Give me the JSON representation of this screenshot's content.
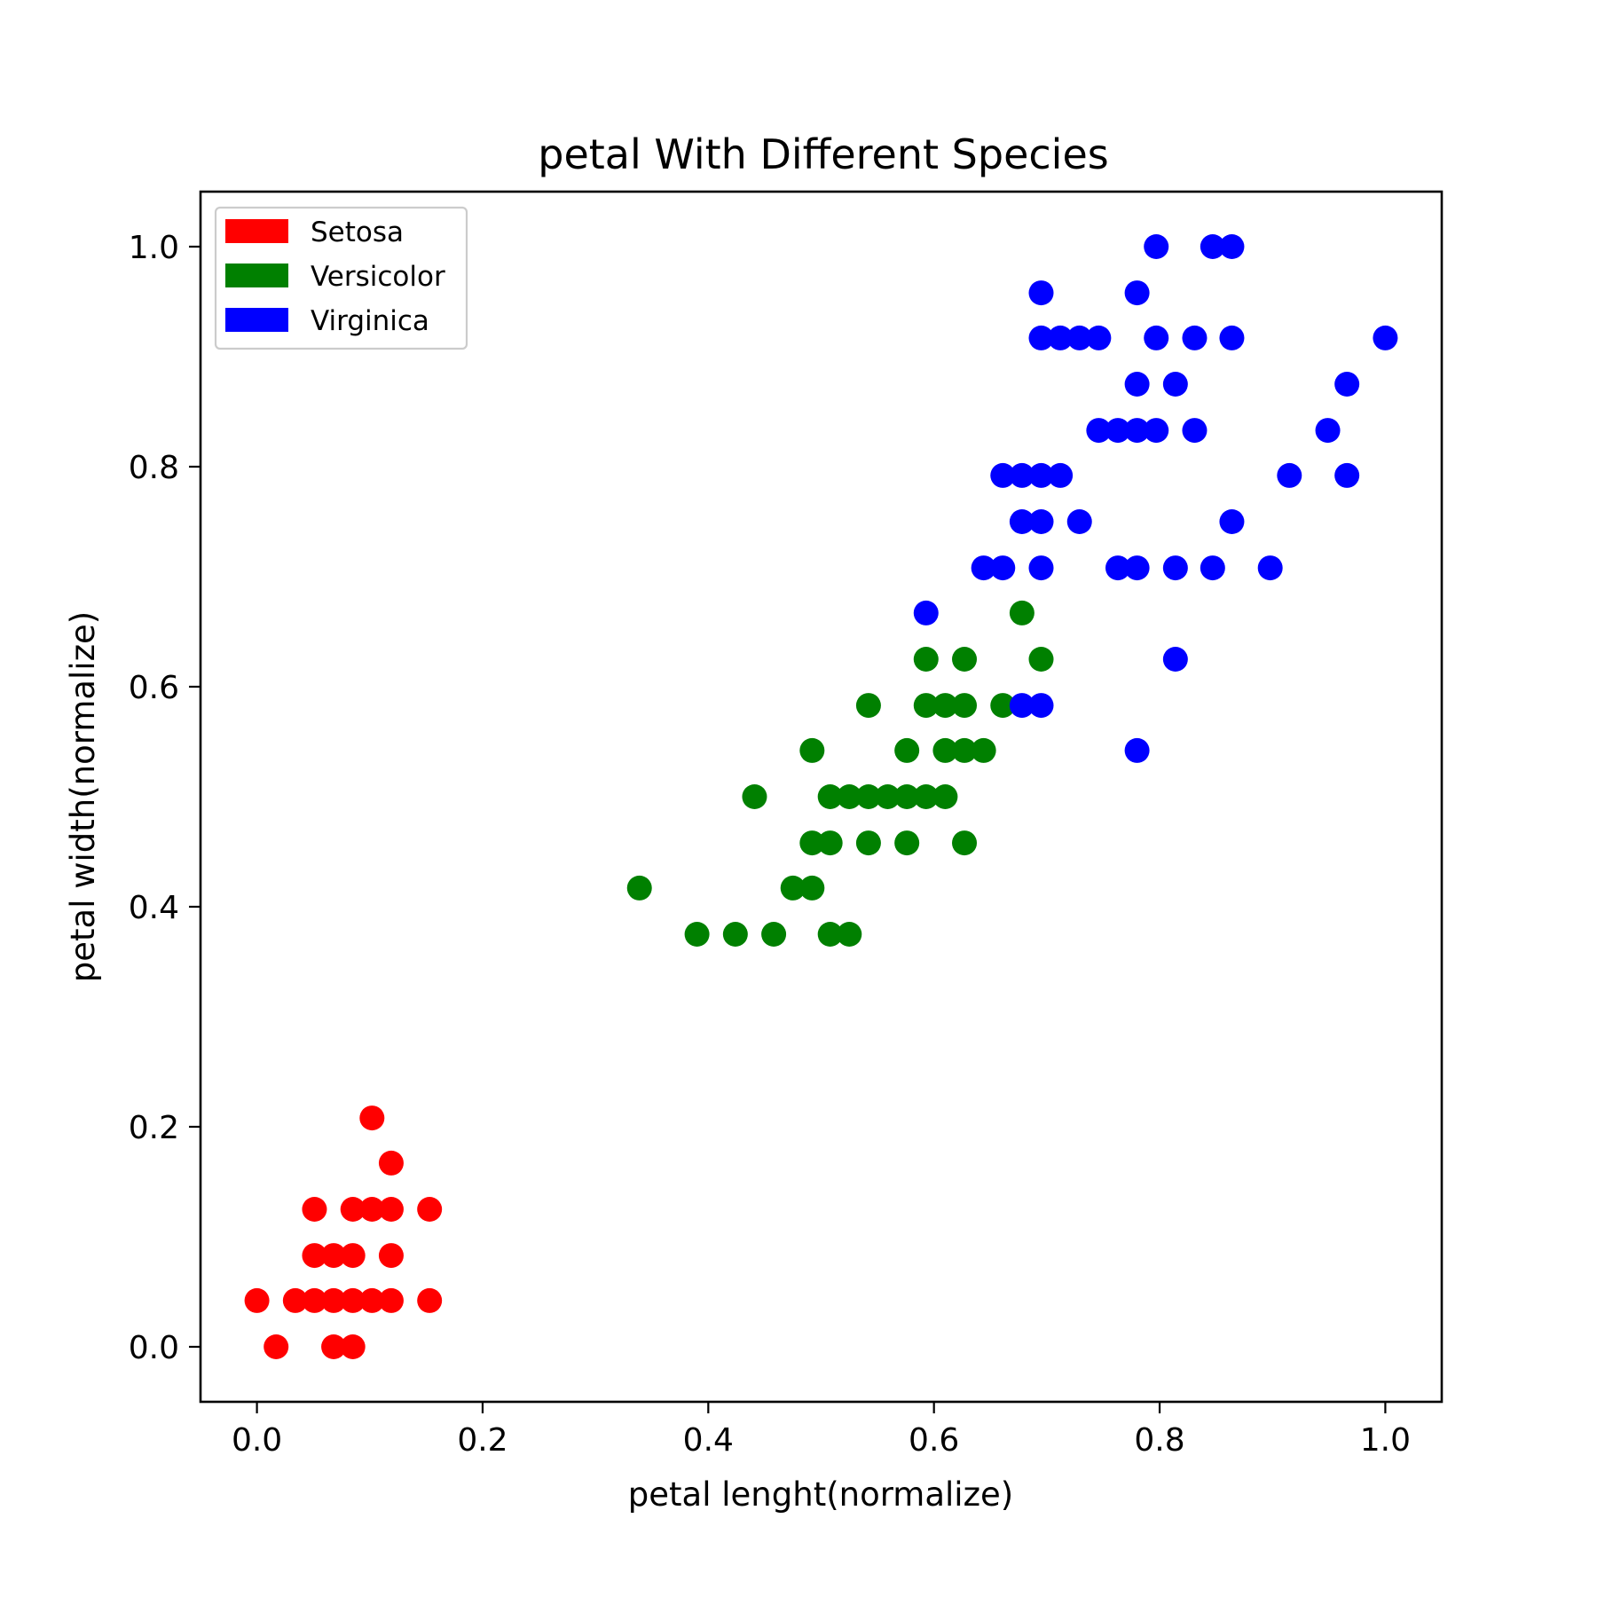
{
  "chart_data": {
    "type": "scatter",
    "title": "petal With Different Species",
    "xlabel": "petal lenght(normalize)",
    "ylabel": "petal width(normalize)",
    "xlim": [
      -0.05,
      1.05
    ],
    "ylim": [
      -0.05,
      1.05
    ],
    "xticks": [
      0.0,
      0.2,
      0.4,
      0.6,
      0.8,
      1.0
    ],
    "yticks": [
      0.0,
      0.2,
      0.4,
      0.6,
      0.8,
      1.0
    ],
    "xtick_labels": [
      "0.0",
      "0.2",
      "0.4",
      "0.6",
      "0.8",
      "1.0"
    ],
    "ytick_labels": [
      "0.0",
      "0.2",
      "0.4",
      "0.6",
      "0.8",
      "1.0"
    ],
    "grid": false,
    "legend_position": "top-left",
    "series": [
      {
        "name": "Setosa",
        "color": "#ff0000",
        "points": [
          [
            0.0,
            0.042
          ],
          [
            0.017,
            0.0
          ],
          [
            0.034,
            0.042
          ],
          [
            0.051,
            0.042
          ],
          [
            0.051,
            0.083
          ],
          [
            0.051,
            0.125
          ],
          [
            0.068,
            0.0
          ],
          [
            0.068,
            0.042
          ],
          [
            0.068,
            0.083
          ],
          [
            0.085,
            0.0
          ],
          [
            0.085,
            0.042
          ],
          [
            0.085,
            0.083
          ],
          [
            0.085,
            0.125
          ],
          [
            0.102,
            0.042
          ],
          [
            0.102,
            0.125
          ],
          [
            0.102,
            0.208
          ],
          [
            0.119,
            0.042
          ],
          [
            0.119,
            0.083
          ],
          [
            0.119,
            0.125
          ],
          [
            0.119,
            0.167
          ],
          [
            0.153,
            0.042
          ],
          [
            0.153,
            0.125
          ]
        ]
      },
      {
        "name": "Versicolor",
        "color": "#008000",
        "points": [
          [
            0.339,
            0.417
          ],
          [
            0.39,
            0.375
          ],
          [
            0.424,
            0.375
          ],
          [
            0.441,
            0.5
          ],
          [
            0.458,
            0.375
          ],
          [
            0.475,
            0.417
          ],
          [
            0.492,
            0.417
          ],
          [
            0.492,
            0.458
          ],
          [
            0.492,
            0.542
          ],
          [
            0.508,
            0.375
          ],
          [
            0.508,
            0.458
          ],
          [
            0.508,
            0.5
          ],
          [
            0.525,
            0.375
          ],
          [
            0.525,
            0.5
          ],
          [
            0.542,
            0.458
          ],
          [
            0.542,
            0.5
          ],
          [
            0.542,
            0.583
          ],
          [
            0.559,
            0.5
          ],
          [
            0.576,
            0.458
          ],
          [
            0.576,
            0.5
          ],
          [
            0.576,
            0.542
          ],
          [
            0.593,
            0.5
          ],
          [
            0.593,
            0.583
          ],
          [
            0.593,
            0.625
          ],
          [
            0.61,
            0.5
          ],
          [
            0.61,
            0.542
          ],
          [
            0.61,
            0.583
          ],
          [
            0.627,
            0.458
          ],
          [
            0.627,
            0.542
          ],
          [
            0.627,
            0.583
          ],
          [
            0.627,
            0.625
          ],
          [
            0.644,
            0.542
          ],
          [
            0.661,
            0.583
          ],
          [
            0.678,
            0.667
          ],
          [
            0.695,
            0.625
          ]
        ]
      },
      {
        "name": "Virginica",
        "color": "#0000ff",
        "points": [
          [
            0.593,
            0.667
          ],
          [
            0.644,
            0.708
          ],
          [
            0.661,
            0.708
          ],
          [
            0.661,
            0.792
          ],
          [
            0.678,
            0.583
          ],
          [
            0.678,
            0.75
          ],
          [
            0.678,
            0.792
          ],
          [
            0.695,
            0.583
          ],
          [
            0.695,
            0.708
          ],
          [
            0.695,
            0.75
          ],
          [
            0.695,
            0.792
          ],
          [
            0.695,
            0.917
          ],
          [
            0.695,
            0.958
          ],
          [
            0.712,
            0.792
          ],
          [
            0.712,
            0.917
          ],
          [
            0.729,
            0.75
          ],
          [
            0.729,
            0.917
          ],
          [
            0.746,
            0.833
          ],
          [
            0.746,
            0.917
          ],
          [
            0.763,
            0.708
          ],
          [
            0.763,
            0.833
          ],
          [
            0.78,
            0.542
          ],
          [
            0.78,
            0.708
          ],
          [
            0.78,
            0.833
          ],
          [
            0.78,
            0.875
          ],
          [
            0.78,
            0.958
          ],
          [
            0.797,
            0.833
          ],
          [
            0.797,
            0.917
          ],
          [
            0.797,
            1.0
          ],
          [
            0.814,
            0.625
          ],
          [
            0.814,
            0.708
          ],
          [
            0.814,
            0.875
          ],
          [
            0.831,
            0.833
          ],
          [
            0.831,
            0.917
          ],
          [
            0.847,
            0.708
          ],
          [
            0.847,
            1.0
          ],
          [
            0.864,
            0.75
          ],
          [
            0.864,
            0.917
          ],
          [
            0.864,
            1.0
          ],
          [
            0.898,
            0.708
          ],
          [
            0.915,
            0.792
          ],
          [
            0.949,
            0.833
          ],
          [
            0.966,
            0.792
          ],
          [
            0.966,
            0.875
          ],
          [
            1.0,
            0.917
          ]
        ]
      }
    ]
  }
}
